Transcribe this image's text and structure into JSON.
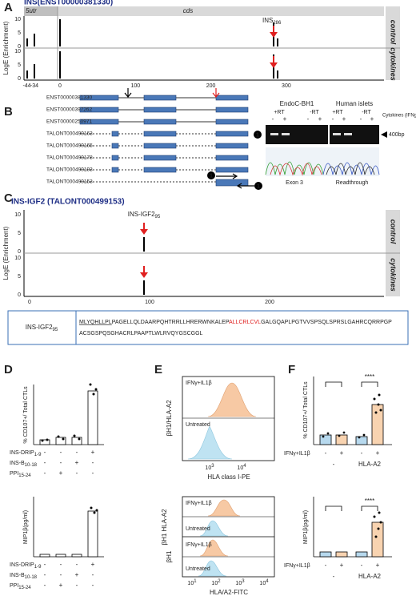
{
  "panel_labels": [
    "A",
    "B",
    "C",
    "D",
    "E",
    "F"
  ],
  "panel_a": {
    "title": "INS(ENST00000381330)",
    "regions": [
      "5utr",
      "cds"
    ],
    "tracks": [
      "control",
      "cytokines"
    ],
    "y_label": "LogE (Enrichment)",
    "yticks": [
      10,
      5,
      0
    ],
    "xticks": [
      -44,
      -34,
      0,
      100,
      200,
      300
    ],
    "annotation": {
      "text": "INS",
      "sub": "286"
    }
  },
  "panel_b": {
    "transcripts": [
      "ENST00000381330",
      "ENST00000397262",
      "ENST00000250971",
      "TALONT000499163",
      "TALONT000499165",
      "TALONT000499178",
      "TALONT000499193",
      "TALONT000499153"
    ],
    "primer": "1",
    "gel": {
      "groups": [
        "EndoC-BH1",
        "Human islets"
      ],
      "rt": [
        "+RT",
        "-RT",
        "+RT",
        "-RT"
      ],
      "treatment": [
        "-",
        "+",
        "-",
        "+",
        "-",
        "+",
        "-",
        "+"
      ],
      "cytokines": "Cytokines (IFNg/IL1b 24h)",
      "size": "400bp",
      "traces": [
        "Exon 3",
        "Readthrough"
      ]
    }
  },
  "panel_c": {
    "title": "INS-IGF2 (TALONT000499153)",
    "tracks": [
      "control",
      "cytokines"
    ],
    "y_label": "LogE (Enrichment)",
    "yticks": [
      10,
      5,
      0
    ],
    "xticks": [
      0,
      100,
      200
    ],
    "annotation": {
      "text": "INS-IGF2",
      "sub": "95"
    }
  },
  "sequence": {
    "name": {
      "text": "INS-IGF2",
      "sub": "95"
    },
    "underlined": "MLYQHLLPL",
    "line1_a": "PAGELLQLDAARPQHTRRLLHRERWNKALEP",
    "line1_red": "ALLCRLCVL",
    "line1_b": "GALGQAPLPGTVVSPSQLSPRSLGAHRCQRRPGP",
    "line2": "ACSGSPQSGHACRLPAAPTLWLRVQYGSCGGL"
  },
  "panel_d": {
    "y_labels": [
      "% CD107+/ Total CTLs",
      "MIP1β(pg/ml)"
    ],
    "conditions": [
      {
        "text": "INS-DRIP",
        "sub": "1-9",
        "signs": [
          "-",
          "-",
          "-",
          "+"
        ]
      },
      {
        "text": "INS-B",
        "sub": "10-18",
        "signs": [
          "-",
          "-",
          "+",
          "-"
        ]
      },
      {
        "text": "PPI",
        "sub": "15-24",
        "signs": [
          "-",
          "+",
          "-",
          "-"
        ]
      }
    ]
  },
  "panel_e": {
    "top": {
      "y_label": "βH1/HLA-A2",
      "legend": [
        "IFNγ+IL1β",
        "Untreated"
      ],
      "x_label": "HLA class I-PE",
      "tick_base": "10",
      "tick_exponents": [
        "3",
        "4"
      ]
    },
    "bottom": {
      "y_labels": [
        "βH1 HLA-A2",
        "βH1"
      ],
      "legend": [
        "IFNγ+IL1β",
        "Untreated",
        "IFNγ+IL1β",
        "Untreated"
      ],
      "x_label": "HLA/A2-FITC",
      "tick_base": "10",
      "tick_exponents": [
        "1",
        "2",
        "3",
        "4"
      ]
    }
  },
  "panel_f": {
    "y_labels": [
      "% CD107+/ Total CTLs",
      "MIP1β(pg/ml)"
    ],
    "significance": [
      "****",
      "****"
    ],
    "treatment_label": "IFNγ+IL1β",
    "signs": [
      "-",
      "+",
      "-",
      "+"
    ],
    "groups": [
      "-",
      "HLA-A2"
    ]
  }
}
